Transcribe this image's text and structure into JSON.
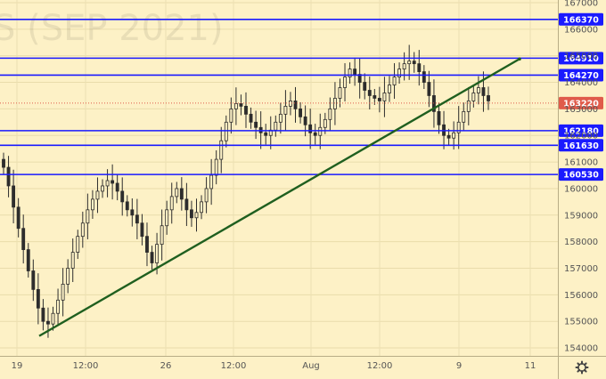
{
  "chart_data": {
    "type": "candlestick",
    "watermark": "S (SEP 2021)",
    "ylim": [
      153700,
      167100
    ],
    "y_ticks": [
      154000,
      155000,
      156000,
      157000,
      158000,
      159000,
      160000,
      161000,
      162000,
      163000,
      164000,
      165000,
      166000,
      167000
    ],
    "x_labels": [
      "19",
      "12:00",
      "26",
      "12:00",
      "Aug",
      "12:00",
      "9",
      "11"
    ],
    "levels": [
      {
        "value": 166370,
        "label": "166370",
        "kind": "support-resistance"
      },
      {
        "value": 164910,
        "label": "164910",
        "kind": "support-resistance"
      },
      {
        "value": 164270,
        "label": "164270",
        "kind": "support-resistance"
      },
      {
        "value": 162180,
        "label": "162180",
        "kind": "support-resistance"
      },
      {
        "value": 161630,
        "label": "161630",
        "kind": "support-resistance"
      },
      {
        "value": 160530,
        "label": "160530",
        "kind": "support-resistance"
      }
    ],
    "current_price": {
      "value": 163220,
      "label": "163220"
    },
    "trendline": {
      "start_value": 154450,
      "end_value": 164880
    },
    "colors": {
      "background": "#fdf1c6",
      "level_line": "#1a1aff",
      "label_bg": "#1a1aff",
      "current_label_bg": "#e05b4a",
      "trendline": "#1f5f1f",
      "candle": "#2d2d2d"
    },
    "series": [
      {
        "name": "",
        "close": [
          160800,
          160100,
          159300,
          158500,
          157700,
          156900,
          156200,
          155500,
          155000,
          154900,
          155300,
          155800,
          156400,
          157000,
          157600,
          158200,
          158700,
          159200,
          159600,
          159900,
          160100,
          160300,
          160200,
          159900,
          159500,
          159200,
          159000,
          158700,
          158200,
          157600,
          157200,
          157900,
          158600,
          159200,
          159700,
          160000,
          159600,
          159200,
          158900,
          159100,
          159500,
          160000,
          160500,
          161100,
          161800,
          162500,
          163000,
          163200,
          163100,
          162800,
          162500,
          162300,
          162100,
          162000,
          162200,
          162500,
          162800,
          163100,
          163300,
          163000,
          162700,
          162400,
          162100,
          162000,
          162300,
          162600,
          163000,
          163400,
          163800,
          164200,
          164500,
          164300,
          164000,
          163700,
          163500,
          163400,
          163300,
          163600,
          163900,
          164200,
          164500,
          164700,
          164800,
          164700,
          164400,
          164000,
          163500,
          162900,
          162400,
          162000,
          161900,
          162100,
          162500,
          162900,
          163300,
          163600,
          163800,
          163500,
          163300
        ]
      }
    ]
  }
}
